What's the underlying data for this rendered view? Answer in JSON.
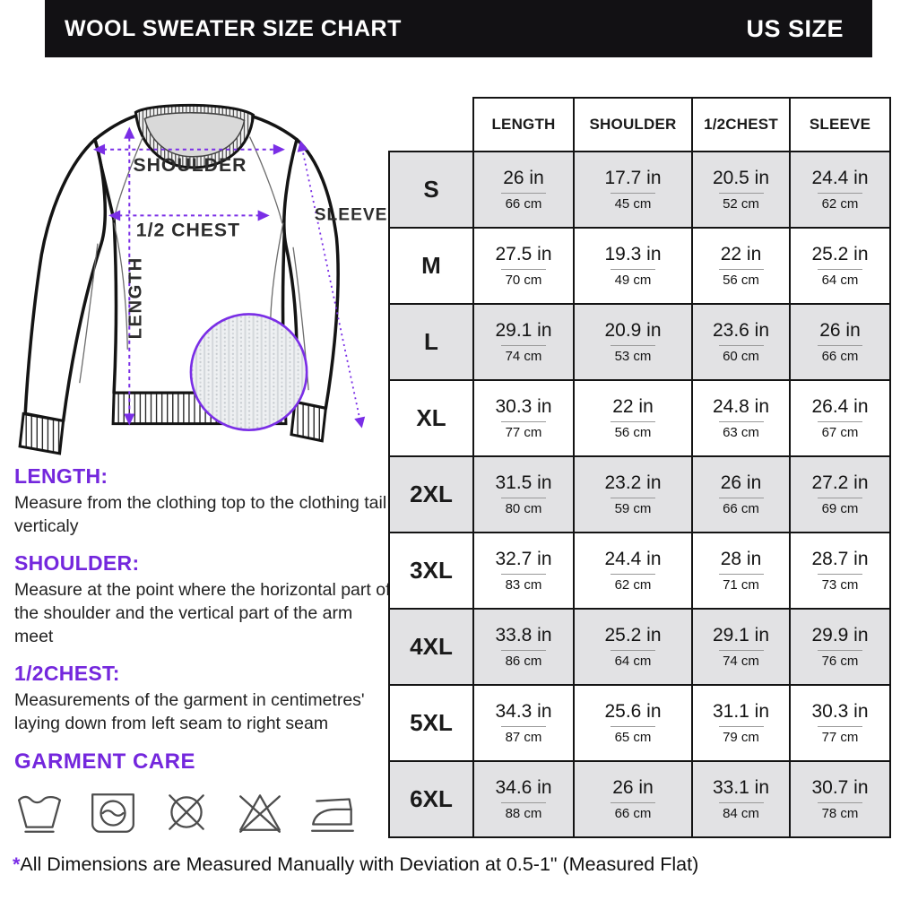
{
  "header": {
    "title": "WOOL SWEATER SIZE CHART",
    "region_label": "US SIZE",
    "bg": "#121114",
    "fg": "#ffffff"
  },
  "colors": {
    "accent_purple": "#7427dd",
    "diagram_purple": "#7a2ee6",
    "row_shade": "#e2e2e4",
    "table_border": "#141414"
  },
  "diagram": {
    "labels": {
      "shoulder": "SHOULDER",
      "half_chest": "1/2 CHEST",
      "length": "LENGTH",
      "sleeve": "SLEEVE"
    }
  },
  "definitions": [
    {
      "term": "LENGTH:",
      "text": "Measure from the clothing top to the clothing tail verticaly"
    },
    {
      "term": "SHOULDER:",
      "text": "Measure at the point where the horizontal part of the shoulder and the vertical part of the arm meet"
    },
    {
      "term": "1/2CHEST:",
      "text": "Measurements of the garment in centimetres' laying down from left seam to right seam"
    }
  ],
  "garment_care": {
    "title": "GARMENT CARE",
    "icons": [
      "hand-wash-icon",
      "machine-wash-icon",
      "do-not-dry-clean-icon",
      "do-not-bleach-icon",
      "iron-icon"
    ]
  },
  "table": {
    "columns": [
      "LENGTH",
      "SHOULDER",
      "1/2CHEST",
      "SLEEVE"
    ],
    "rows": [
      {
        "size": "S",
        "cells": [
          [
            "26 in",
            "66 cm"
          ],
          [
            "17.7 in",
            "45 cm"
          ],
          [
            "20.5 in",
            "52 cm"
          ],
          [
            "24.4 in",
            "62 cm"
          ]
        ]
      },
      {
        "size": "M",
        "cells": [
          [
            "27.5 in",
            "70 cm"
          ],
          [
            "19.3 in",
            "49 cm"
          ],
          [
            "22 in",
            "56 cm"
          ],
          [
            "25.2 in",
            "64 cm"
          ]
        ]
      },
      {
        "size": "L",
        "cells": [
          [
            "29.1 in",
            "74 cm"
          ],
          [
            "20.9 in",
            "53 cm"
          ],
          [
            "23.6 in",
            "60 cm"
          ],
          [
            "26 in",
            "66 cm"
          ]
        ]
      },
      {
        "size": "XL",
        "cells": [
          [
            "30.3 in",
            "77 cm"
          ],
          [
            "22 in",
            "56 cm"
          ],
          [
            "24.8 in",
            "63 cm"
          ],
          [
            "26.4 in",
            "67 cm"
          ]
        ]
      },
      {
        "size": "2XL",
        "cells": [
          [
            "31.5 in",
            "80 cm"
          ],
          [
            "23.2 in",
            "59 cm"
          ],
          [
            "26 in",
            "66 cm"
          ],
          [
            "27.2 in",
            "69 cm"
          ]
        ]
      },
      {
        "size": "3XL",
        "cells": [
          [
            "32.7 in",
            "83 cm"
          ],
          [
            "24.4 in",
            "62 cm"
          ],
          [
            "28 in",
            "71 cm"
          ],
          [
            "28.7 in",
            "73 cm"
          ]
        ]
      },
      {
        "size": "4XL",
        "cells": [
          [
            "33.8 in",
            "86 cm"
          ],
          [
            "25.2 in",
            "64 cm"
          ],
          [
            "29.1 in",
            "74 cm"
          ],
          [
            "29.9 in",
            "76 cm"
          ]
        ]
      },
      {
        "size": "5XL",
        "cells": [
          [
            "34.3 in",
            "87 cm"
          ],
          [
            "25.6 in",
            "65 cm"
          ],
          [
            "31.1 in",
            "79 cm"
          ],
          [
            "30.3 in",
            "77 cm"
          ]
        ]
      },
      {
        "size": "6XL",
        "cells": [
          [
            "34.6 in",
            "88 cm"
          ],
          [
            "26 in",
            "66 cm"
          ],
          [
            "33.1 in",
            "84 cm"
          ],
          [
            "30.7 in",
            "78 cm"
          ]
        ]
      }
    ]
  },
  "footnote": {
    "star": "*",
    "text": "All Dimensions are Measured Manually with Deviation at 0.5-1\"  (Measured Flat)"
  }
}
